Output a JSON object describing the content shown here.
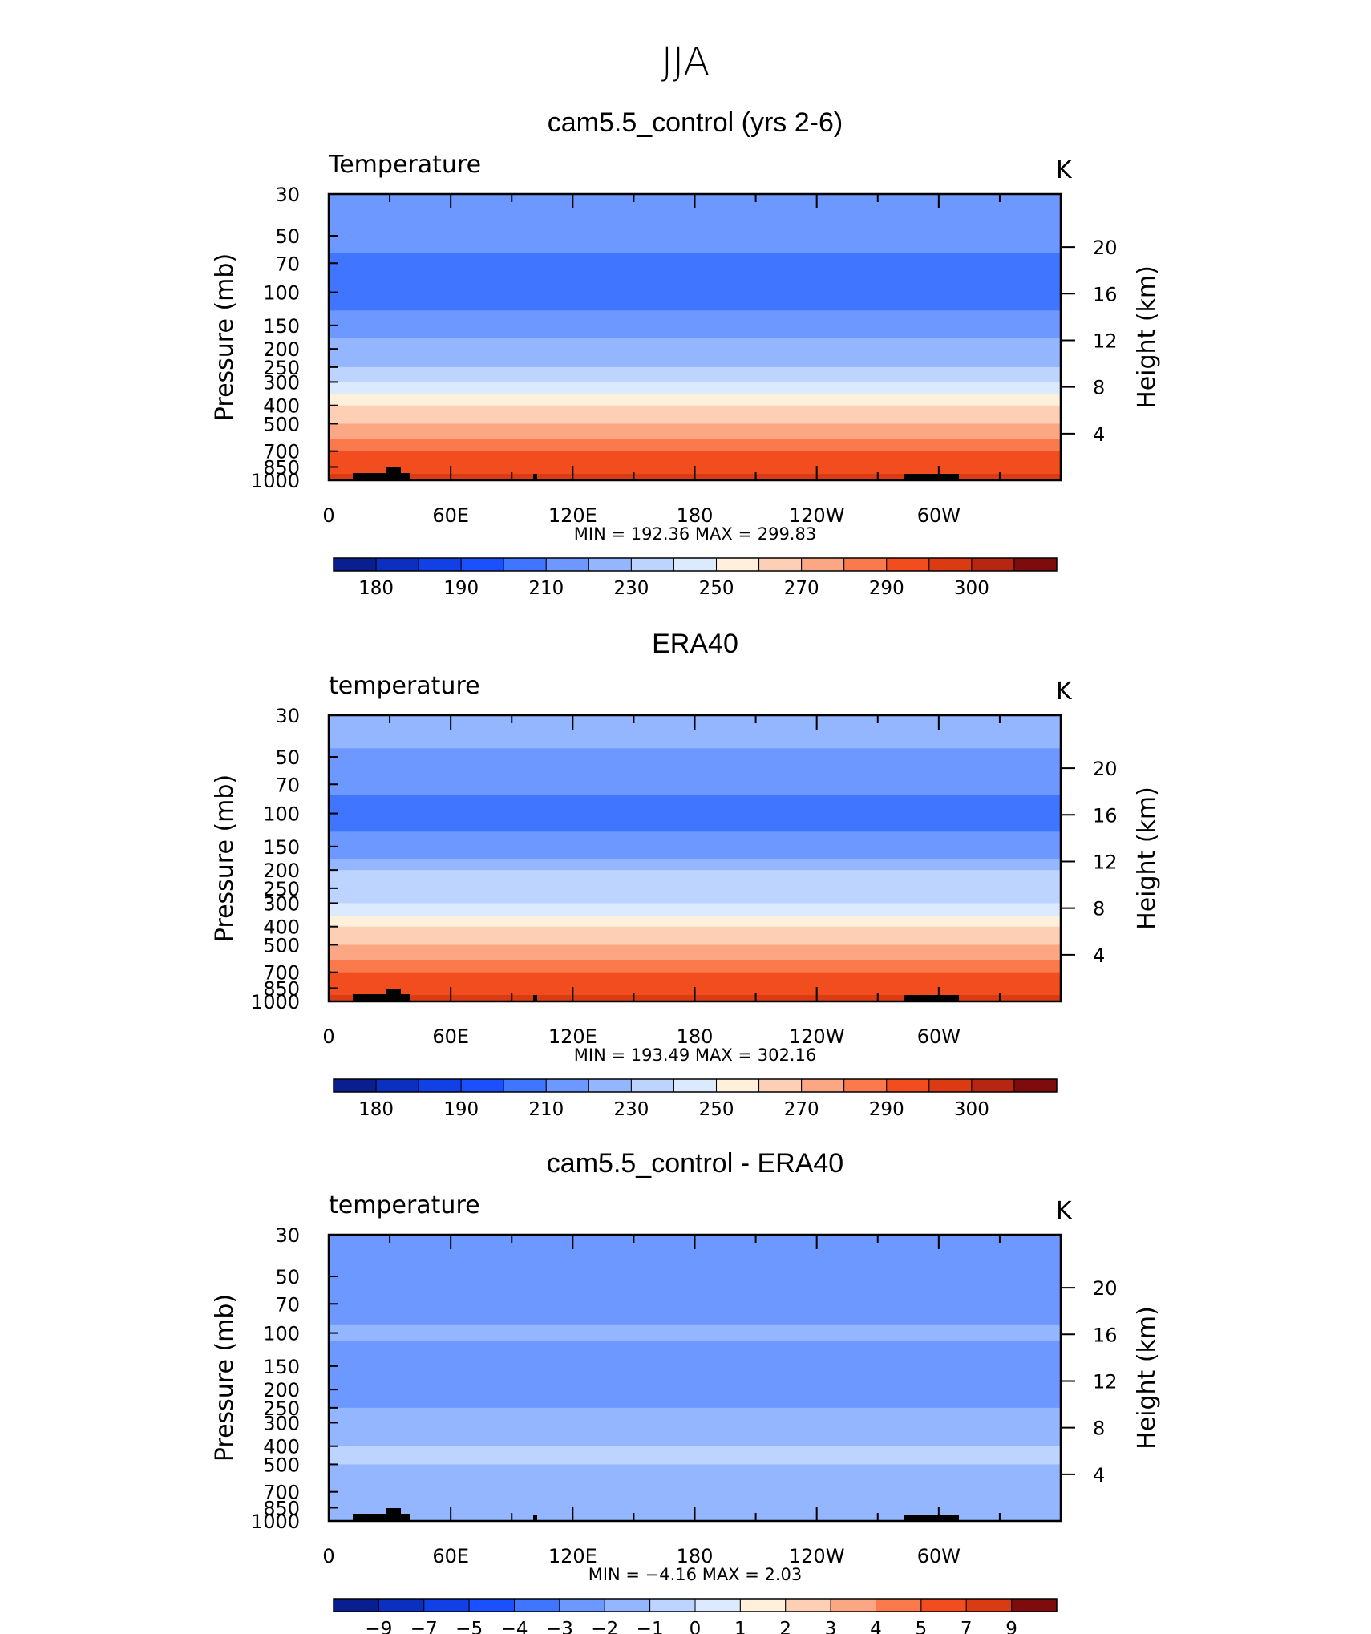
{
  "figure_title": "JJA",
  "chart_data": [
    {
      "type": "heatmap",
      "title": "cam5.5_control (yrs 2-6)",
      "variable_label": "Temperature",
      "units": "K",
      "ylabel": "Pressure (mb)",
      "y2label": "Height (km)",
      "x_tick_labels": [
        "0",
        "60E",
        "120E",
        "180",
        "120W",
        "60W"
      ],
      "y_tick_labels": [
        "30",
        "50",
        "70",
        "100",
        "150",
        "200",
        "250",
        "300",
        "400",
        "500",
        "700",
        "850",
        "1000"
      ],
      "y2_tick_labels": [
        "20",
        "16",
        "12",
        "8",
        "4"
      ],
      "ylim": [
        1000,
        30
      ],
      "stats": {
        "min_label": "MIN",
        "min": "192.36",
        "max_label": "MAX",
        "max": "299.83"
      },
      "levels": [
        {
          "p": 30,
          "v": 212
        },
        {
          "p": 45,
          "v": 206
        },
        {
          "p": 62,
          "v": 201
        },
        {
          "p": 80,
          "v": 197
        },
        {
          "p": 100,
          "v": 195
        },
        {
          "p": 125,
          "v": 198
        },
        {
          "p": 150,
          "v": 204
        },
        {
          "p": 175,
          "v": 210
        },
        {
          "p": 200,
          "v": 215
        },
        {
          "p": 250,
          "v": 224
        },
        {
          "p": 300,
          "v": 233
        },
        {
          "p": 350,
          "v": 241
        },
        {
          "p": 400,
          "v": 248
        },
        {
          "p": 500,
          "v": 259
        },
        {
          "p": 600,
          "v": 267
        },
        {
          "p": 700,
          "v": 275
        },
        {
          "p": 850,
          "v": 285
        },
        {
          "p": 925,
          "v": 290
        },
        {
          "p": 1000,
          "v": 294
        }
      ],
      "colorbar": {
        "labels": [
          "180",
          "190",
          "210",
          "230",
          "250",
          "270",
          "290",
          "300"
        ],
        "bounds": [
          175,
          180,
          185,
          190,
          200,
          210,
          220,
          230,
          240,
          250,
          260,
          270,
          280,
          290,
          295,
          300
        ],
        "colors": [
          "#0a1f8f",
          "#0b2fbf",
          "#1040e6",
          "#1a50ff",
          "#3f75ff",
          "#6d98ff",
          "#93b6ff",
          "#bcd4ff",
          "#dceaff",
          "#fff0dc",
          "#fdd0b6",
          "#fca784",
          "#fa7a4e",
          "#f24d1e",
          "#da3b12",
          "#b52712",
          "#7f0c0c"
        ]
      }
    },
    {
      "type": "heatmap",
      "title": "ERA40",
      "variable_label": "temperature",
      "units": "K",
      "ylabel": "Pressure (mb)",
      "y2label": "Height (km)",
      "x_tick_labels": [
        "0",
        "60E",
        "120E",
        "180",
        "120W",
        "60W"
      ],
      "y_tick_labels": [
        "30",
        "50",
        "70",
        "100",
        "150",
        "200",
        "250",
        "300",
        "400",
        "500",
        "700",
        "850",
        "1000"
      ],
      "y2_tick_labels": [
        "20",
        "16",
        "12",
        "8",
        "4"
      ],
      "ylim": [
        1000,
        30
      ],
      "stats": {
        "min_label": "MIN",
        "min": "193.49",
        "max_label": "MAX",
        "max": "302.16"
      },
      "levels": [
        {
          "p": 30,
          "v": 213
        },
        {
          "p": 45,
          "v": 207
        },
        {
          "p": 62,
          "v": 202
        },
        {
          "p": 80,
          "v": 198
        },
        {
          "p": 100,
          "v": 196
        },
        {
          "p": 125,
          "v": 199
        },
        {
          "p": 150,
          "v": 205
        },
        {
          "p": 175,
          "v": 211
        },
        {
          "p": 200,
          "v": 216
        },
        {
          "p": 250,
          "v": 225
        },
        {
          "p": 300,
          "v": 234
        },
        {
          "p": 350,
          "v": 242
        },
        {
          "p": 400,
          "v": 249
        },
        {
          "p": 500,
          "v": 260
        },
        {
          "p": 600,
          "v": 268
        },
        {
          "p": 700,
          "v": 276
        },
        {
          "p": 850,
          "v": 286
        },
        {
          "p": 925,
          "v": 291
        },
        {
          "p": 1000,
          "v": 296
        }
      ],
      "colorbar": {
        "labels": [
          "180",
          "190",
          "210",
          "230",
          "250",
          "270",
          "290",
          "300"
        ],
        "bounds": [
          175,
          180,
          185,
          190,
          200,
          210,
          220,
          230,
          240,
          250,
          260,
          270,
          280,
          290,
          295,
          300
        ],
        "colors": [
          "#0a1f8f",
          "#0b2fbf",
          "#1040e6",
          "#1a50ff",
          "#3f75ff",
          "#6d98ff",
          "#93b6ff",
          "#bcd4ff",
          "#dceaff",
          "#fff0dc",
          "#fdd0b6",
          "#fca784",
          "#fa7a4e",
          "#f24d1e",
          "#da3b12",
          "#b52712",
          "#7f0c0c"
        ]
      }
    },
    {
      "type": "heatmap",
      "title": "cam5.5_control - ERA40",
      "variable_label": "temperature",
      "units": "K",
      "ylabel": "Pressure (mb)",
      "y2label": "Height (km)",
      "x_tick_labels": [
        "0",
        "60E",
        "120E",
        "180",
        "120W",
        "60W"
      ],
      "y_tick_labels": [
        "30",
        "50",
        "70",
        "100",
        "150",
        "200",
        "250",
        "300",
        "400",
        "500",
        "700",
        "850",
        "1000"
      ],
      "y2_tick_labels": [
        "20",
        "16",
        "12",
        "8",
        "4"
      ],
      "ylim": [
        1000,
        30
      ],
      "stats": {
        "min_label": "MIN",
        "min": "−4.16",
        "max_label": "MAX",
        "max": "2.03"
      },
      "levels": [
        {
          "p": 30,
          "v": -3.2
        },
        {
          "p": 45,
          "v": -2.5
        },
        {
          "p": 62,
          "v": -2.8
        },
        {
          "p": 75,
          "v": -3.1
        },
        {
          "p": 90,
          "v": -2.2
        },
        {
          "p": 110,
          "v": -1.8
        },
        {
          "p": 140,
          "v": -2.6
        },
        {
          "p": 170,
          "v": -2.4
        },
        {
          "p": 200,
          "v": -2.8
        },
        {
          "p": 250,
          "v": -2.1
        },
        {
          "p": 300,
          "v": -1.6
        },
        {
          "p": 400,
          "v": -0.6
        },
        {
          "p": 500,
          "v": -0.8
        },
        {
          "p": 650,
          "v": -1.5
        },
        {
          "p": 800,
          "v": -1.7
        },
        {
          "p": 900,
          "v": -1.2
        },
        {
          "p": 1000,
          "v": -1.4
        }
      ],
      "colorbar": {
        "labels": [
          "−9",
          "−7",
          "−5",
          "−4",
          "−3",
          "−2",
          "−1",
          "0",
          "1",
          "2",
          "3",
          "4",
          "5",
          "7",
          "9"
        ],
        "bounds": [
          -9,
          -7,
          -5,
          -4,
          -3,
          -2,
          -1,
          0,
          1,
          2,
          3,
          4,
          5,
          7,
          9
        ],
        "colors": [
          "#0a1f8f",
          "#0b2fbf",
          "#1040e6",
          "#1a50ff",
          "#3f75ff",
          "#6d98ff",
          "#93b6ff",
          "#bcd4ff",
          "#dceaff",
          "#fff0dc",
          "#fdd0b6",
          "#fca784",
          "#fa7a4e",
          "#f24d1e",
          "#da3b12",
          "#7f0c0c"
        ]
      }
    }
  ]
}
